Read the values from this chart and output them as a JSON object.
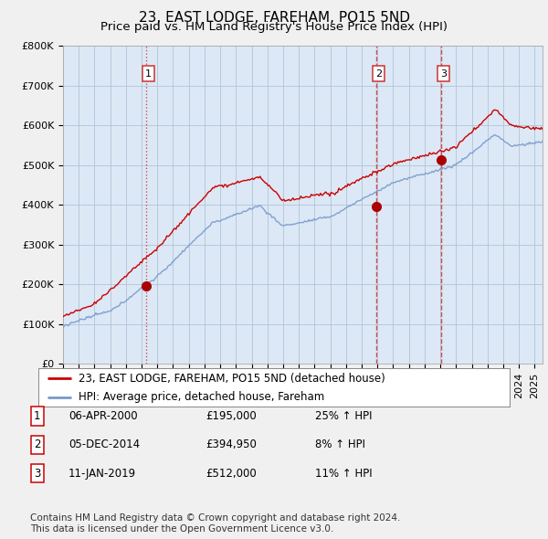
{
  "title": "23, EAST LODGE, FAREHAM, PO15 5ND",
  "subtitle": "Price paid vs. HM Land Registry's House Price Index (HPI)",
  "ylabel_ticks": [
    "£0",
    "£100K",
    "£200K",
    "£300K",
    "£400K",
    "£500K",
    "£600K",
    "£700K",
    "£800K"
  ],
  "ytick_vals": [
    0,
    100000,
    200000,
    300000,
    400000,
    500000,
    600000,
    700000,
    800000
  ],
  "ylim": [
    0,
    800000
  ],
  "xlim_start": 1995.0,
  "xlim_end": 2025.5,
  "sale_dates": [
    2000.27,
    2014.92,
    2019.04
  ],
  "sale_prices": [
    195000,
    394950,
    512000
  ],
  "sale_labels": [
    "1",
    "2",
    "3"
  ],
  "red_line_color": "#cc0000",
  "blue_line_color": "#7799cc",
  "sale_marker_color": "#aa0000",
  "vline_color": "#cc3333",
  "plot_bg_color": "#dce8f5",
  "background_color": "#f0f0f0",
  "grid_color": "#b0c4d8",
  "legend_red_label": "23, EAST LODGE, FAREHAM, PO15 5ND (detached house)",
  "legend_blue_label": "HPI: Average price, detached house, Fareham",
  "table_rows": [
    [
      "1",
      "06-APR-2000",
      "£195,000",
      "25% ↑ HPI"
    ],
    [
      "2",
      "05-DEC-2014",
      "£394,950",
      "8% ↑ HPI"
    ],
    [
      "3",
      "11-JAN-2019",
      "£512,000",
      "11% ↑ HPI"
    ]
  ],
  "footnote": "Contains HM Land Registry data © Crown copyright and database right 2024.\nThis data is licensed under the Open Government Licence v3.0.",
  "title_fontsize": 11,
  "subtitle_fontsize": 9.5,
  "tick_fontsize": 8,
  "legend_fontsize": 8.5,
  "table_fontsize": 8.5,
  "footnote_fontsize": 7.5
}
